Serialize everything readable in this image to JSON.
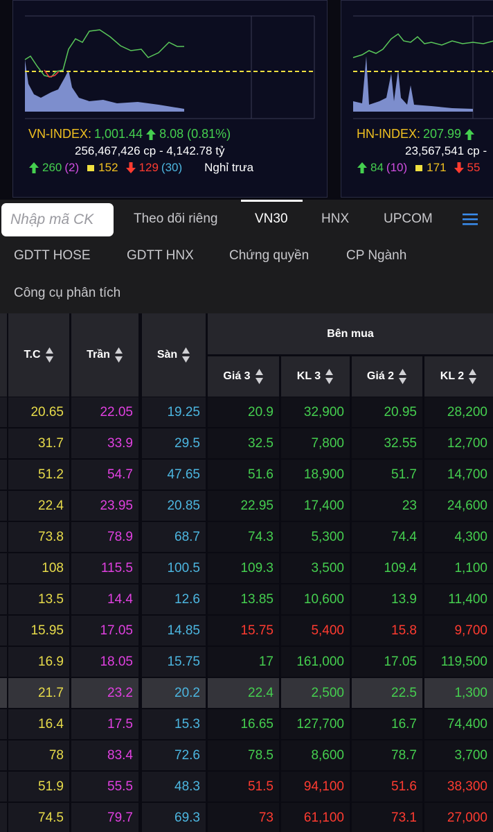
{
  "index_cards": [
    {
      "name": "VN-INDEX:",
      "value": "1,001.44",
      "change": "8.08 (0.81%)",
      "volume": "256,467,426 cp - 4,142.78 tỷ",
      "advances": "260",
      "ceiling": "(2)",
      "unchanged": "152",
      "declines": "129",
      "floor": "(30)",
      "status": "Nghỉ trưa"
    },
    {
      "name": "HN-INDEX:",
      "value": "207.99",
      "volume": "23,567,541 cp -",
      "advances": "84",
      "ceiling": "(10)",
      "unchanged": "171",
      "declines": "55"
    }
  ],
  "search": {
    "placeholder": "Nhập mã CK"
  },
  "tabs": [
    "Theo dõi riêng",
    "VN30",
    "HNX",
    "UPCOM"
  ],
  "subtabs": [
    "GDTT HOSE",
    "GDTT HNX",
    "Chứng quyền",
    "CP Ngành",
    "Công cụ phân tích"
  ],
  "table": {
    "group_header": "Bên mua",
    "columns": [
      "T.C",
      "Trần",
      "Sàn",
      "Giá 3",
      "KL 3",
      "Giá 2",
      "KL 2"
    ],
    "rows": [
      {
        "cells": [
          "20.65",
          "22.05",
          "19.25",
          "20.9",
          "32,900",
          "20.95",
          "28,200"
        ],
        "bid_color": "#45cf4f"
      },
      {
        "cells": [
          "31.7",
          "33.9",
          "29.5",
          "32.5",
          "7,800",
          "32.55",
          "12,700"
        ],
        "bid_color": "#45cf4f"
      },
      {
        "cells": [
          "51.2",
          "54.7",
          "47.65",
          "51.6",
          "18,900",
          "51.7",
          "14,700"
        ],
        "bid_color": "#45cf4f"
      },
      {
        "cells": [
          "22.4",
          "23.95",
          "20.85",
          "22.95",
          "17,400",
          "23",
          "24,600"
        ],
        "bid_color": "#45cf4f"
      },
      {
        "cells": [
          "73.8",
          "78.9",
          "68.7",
          "74.3",
          "5,300",
          "74.4",
          "4,300"
        ],
        "bid_color": "#45cf4f"
      },
      {
        "cells": [
          "108",
          "115.5",
          "100.5",
          "109.3",
          "3,500",
          "109.4",
          "1,100"
        ],
        "bid_color": "#45cf4f"
      },
      {
        "cells": [
          "13.5",
          "14.4",
          "12.6",
          "13.85",
          "10,600",
          "13.9",
          "11,400"
        ],
        "bid_color": "#45cf4f"
      },
      {
        "cells": [
          "15.95",
          "17.05",
          "14.85",
          "15.75",
          "5,400",
          "15.8",
          "9,700"
        ],
        "bid_color": "#ff3b30"
      },
      {
        "cells": [
          "16.9",
          "18.05",
          "15.75",
          "17",
          "161,000",
          "17.05",
          "119,500"
        ],
        "bid_color": "#45cf4f"
      },
      {
        "cells": [
          "21.7",
          "23.2",
          "20.2",
          "22.4",
          "2,500",
          "22.5",
          "1,300"
        ],
        "bid_color": "#45cf4f"
      },
      {
        "cells": [
          "16.4",
          "17.5",
          "15.3",
          "16.65",
          "127,700",
          "16.7",
          "74,400"
        ],
        "bid_color": "#45cf4f"
      },
      {
        "cells": [
          "78",
          "83.4",
          "72.6",
          "78.5",
          "8,600",
          "78.7",
          "3,700"
        ],
        "bid_color": "#45cf4f"
      },
      {
        "cells": [
          "51.9",
          "55.5",
          "48.3",
          "51.5",
          "94,100",
          "51.6",
          "38,300"
        ],
        "bid_color": "#ff3b30"
      },
      {
        "cells": [
          "74.5",
          "79.7",
          "69.3",
          "73",
          "61,100",
          "73.1",
          "27,000"
        ],
        "bid_color": "#ff3b30"
      }
    ]
  }
}
